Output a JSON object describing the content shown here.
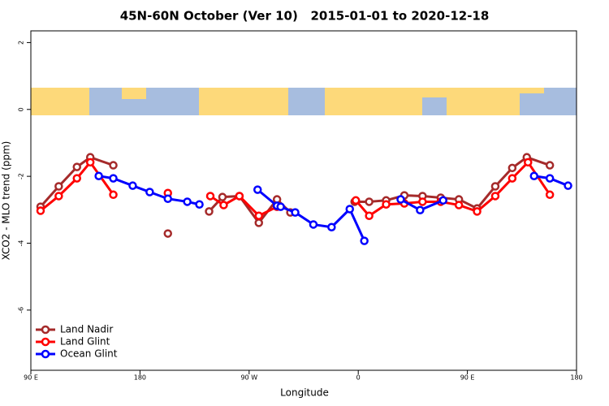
{
  "chart_data": {
    "type": "line",
    "title": "45N-60N October (Ver 10)   2015-01-01 to 2020-12-18",
    "x_label": "Longitude",
    "y_label": "XCO2 - MLO trend (ppm)",
    "xlim": [
      90,
      540
    ],
    "ylim": [
      -7.8,
      2.35
    ],
    "xticks": [
      {
        "value": 90,
        "label": "90 E"
      },
      {
        "value": 180,
        "label": "180"
      },
      {
        "value": 270,
        "label": "90 W"
      },
      {
        "value": 360,
        "label": "0"
      },
      {
        "value": 450,
        "label": "90 E"
      },
      {
        "value": 540,
        "label": "180"
      }
    ],
    "yticks": [
      2,
      0,
      -2,
      -4,
      -6
    ],
    "legend": "bottom left",
    "series": [
      {
        "name": "Land Nadir",
        "color": "#a52a2a",
        "x": [
          98,
          113,
          128,
          139,
          158,
          null,
          203,
          null,
          237,
          248,
          262,
          278,
          293,
          304,
          null,
          357,
          369,
          383,
          398,
          413,
          428,
          443,
          458,
          473,
          487,
          499,
          518
        ],
        "values": [
          -2.91,
          -2.3,
          -1.72,
          -1.43,
          -1.67,
          null,
          -3.71,
          null,
          -3.05,
          -2.62,
          -2.59,
          -3.39,
          -2.69,
          -3.08,
          null,
          -2.76,
          -2.76,
          -2.72,
          -2.57,
          -2.59,
          -2.64,
          -2.69,
          -2.96,
          -2.3,
          -1.75,
          -1.43,
          -1.67
        ]
      },
      {
        "name": "Land Glint",
        "color": "#ff0000",
        "x": [
          98,
          113,
          128,
          139,
          158,
          null,
          203,
          null,
          238,
          249,
          262,
          278,
          293,
          null,
          358,
          369,
          383,
          398,
          413,
          428,
          443,
          458,
          473,
          487,
          500,
          518
        ],
        "values": [
          -3.03,
          -2.59,
          -2.06,
          -1.58,
          -2.55,
          null,
          -2.5,
          null,
          -2.59,
          -2.86,
          -2.59,
          -3.18,
          -2.91,
          null,
          -2.72,
          -3.18,
          -2.84,
          -2.81,
          -2.76,
          -2.76,
          -2.86,
          -3.05,
          -2.59,
          -2.06,
          -1.58,
          -2.55
        ]
      },
      {
        "name": "Ocean Glint",
        "color": "#0000ff",
        "x": [
          146,
          158,
          174,
          188,
          203,
          219,
          229,
          null,
          277,
          293,
          296,
          308,
          323,
          338,
          353,
          365,
          null,
          395,
          411,
          430,
          null,
          505,
          518,
          533
        ],
        "values": [
          -1.99,
          -2.06,
          -2.28,
          -2.47,
          -2.67,
          -2.76,
          -2.84,
          null,
          -2.4,
          -2.88,
          -2.91,
          -3.08,
          -3.44,
          -3.52,
          -2.98,
          -3.93,
          null,
          -2.69,
          -3.01,
          -2.72,
          null,
          -1.99,
          -2.06,
          -2.28
        ]
      }
    ]
  }
}
